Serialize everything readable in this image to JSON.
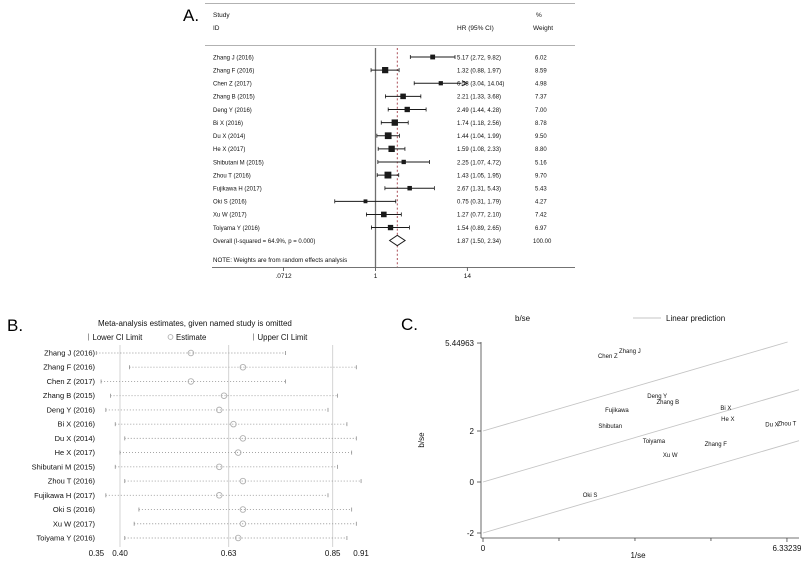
{
  "chart_data": [
    {
      "type": "forest",
      "panel_label": "A.",
      "columns": {
        "study": "Study",
        "id": "ID",
        "hr": "HR (95% CI)",
        "percent": "%",
        "weight": "Weight"
      },
      "note": "NOTE: Weights are from random effects analysis",
      "x_axis": {
        "scale": "log",
        "null_value": 1,
        "ticks": [
          {
            "label": ".0712",
            "value": 0.0712
          },
          {
            "label": "1",
            "value": 1
          },
          {
            "label": "14",
            "value": 14
          }
        ]
      },
      "studies": [
        {
          "id": "Zhang J (2016)",
          "hr": 5.17,
          "lo": 2.72,
          "hi": 9.82,
          "hr_text": "5.17 (2.72, 9.82)",
          "weight": 6.02,
          "weight_text": "6.02"
        },
        {
          "id": "Zhang F (2016)",
          "hr": 1.32,
          "lo": 0.88,
          "hi": 1.97,
          "hr_text": "1.32 (0.88, 1.97)",
          "weight": 8.59,
          "weight_text": "8.59"
        },
        {
          "id": "Chen Z (2017)",
          "hr": 6.53,
          "lo": 3.04,
          "hi": 14.04,
          "hr_text": "6.53 (3.04, 14.04)",
          "weight": 4.98,
          "weight_text": "4.98"
        },
        {
          "id": "Zhang B (2015)",
          "hr": 2.21,
          "lo": 1.33,
          "hi": 3.68,
          "hr_text": "2.21 (1.33, 3.68)",
          "weight": 7.37,
          "weight_text": "7.37"
        },
        {
          "id": "Deng Y (2016)",
          "hr": 2.49,
          "lo": 1.44,
          "hi": 4.28,
          "hr_text": "2.49 (1.44, 4.28)",
          "weight": 7.0,
          "weight_text": "7.00"
        },
        {
          "id": "Bi X (2016)",
          "hr": 1.74,
          "lo": 1.18,
          "hi": 2.56,
          "hr_text": "1.74 (1.18, 2.56)",
          "weight": 8.78,
          "weight_text": "8.78"
        },
        {
          "id": "Du X (2014)",
          "hr": 1.44,
          "lo": 1.04,
          "hi": 1.99,
          "hr_text": "1.44 (1.04, 1.99)",
          "weight": 9.5,
          "weight_text": "9.50"
        },
        {
          "id": "He X (2017)",
          "hr": 1.59,
          "lo": 1.08,
          "hi": 2.33,
          "hr_text": "1.59 (1.08, 2.33)",
          "weight": 8.8,
          "weight_text": "8.80"
        },
        {
          "id": "Shibutani M (2015)",
          "hr": 2.25,
          "lo": 1.07,
          "hi": 4.72,
          "hr_text": "2.25 (1.07, 4.72)",
          "weight": 5.16,
          "weight_text": "5.16"
        },
        {
          "id": "Zhou T (2016)",
          "hr": 1.43,
          "lo": 1.05,
          "hi": 1.95,
          "hr_text": "1.43 (1.05, 1.95)",
          "weight": 9.7,
          "weight_text": "9.70"
        },
        {
          "id": "Fujikawa H (2017)",
          "hr": 2.67,
          "lo": 1.31,
          "hi": 5.43,
          "hr_text": "2.67 (1.31, 5.43)",
          "weight": 5.43,
          "weight_text": "5.43"
        },
        {
          "id": "Oki S (2016)",
          "hr": 0.75,
          "lo": 0.31,
          "hi": 1.79,
          "hr_text": "0.75 (0.31, 1.79)",
          "weight": 4.27,
          "weight_text": "4.27"
        },
        {
          "id": "Xu W (2017)",
          "hr": 1.27,
          "lo": 0.77,
          "hi": 2.1,
          "hr_text": "1.27 (0.77, 2.10)",
          "weight": 7.42,
          "weight_text": "7.42"
        },
        {
          "id": "Toiyama Y (2016)",
          "hr": 1.54,
          "lo": 0.89,
          "hi": 2.65,
          "hr_text": "1.54 (0.89, 2.65)",
          "weight": 6.97,
          "weight_text": "6.97"
        }
      ],
      "overall": {
        "id": "Overall  (I-squared = 64.9%, p = 0.000)",
        "hr": 1.87,
        "lo": 1.5,
        "hi": 2.34,
        "hr_text": "1.87 (1.50, 2.34)",
        "weight_text": "100.00"
      },
      "colors": {
        "marker": "#1a1a1a",
        "null_line": "#6f6f6f",
        "overall_dashed_line": "#a23b45"
      }
    },
    {
      "type": "sensitivity",
      "panel_label": "B.",
      "title": "Meta-analysis estimates, given named study is omitted",
      "legend": {
        "lower": "Lower CI Limit",
        "estimate": "Estimate",
        "upper": "Upper CI Limit"
      },
      "x_ticks": [
        {
          "label": "0.35",
          "value": 0.35
        },
        {
          "label": "0.40",
          "value": 0.4
        },
        {
          "label": "0.63",
          "value": 0.63
        },
        {
          "label": "0.85",
          "value": 0.85
        },
        {
          "label": "0.91",
          "value": 0.91
        }
      ],
      "gridlines": [
        0.4,
        0.63,
        0.85
      ],
      "rows": [
        {
          "label": "Zhang J (2016)",
          "lower": 0.35,
          "estimate": 0.55,
          "upper": 0.75
        },
        {
          "label": "Zhang F (2016)",
          "lower": 0.42,
          "estimate": 0.66,
          "upper": 0.9
        },
        {
          "label": "Chen Z (2017)",
          "lower": 0.36,
          "estimate": 0.55,
          "upper": 0.75
        },
        {
          "label": "Zhang B (2015)",
          "lower": 0.38,
          "estimate": 0.62,
          "upper": 0.86
        },
        {
          "label": "Deng Y (2016)",
          "lower": 0.37,
          "estimate": 0.61,
          "upper": 0.84
        },
        {
          "label": "Bi X (2016)",
          "lower": 0.39,
          "estimate": 0.64,
          "upper": 0.88
        },
        {
          "label": "Du X (2014)",
          "lower": 0.41,
          "estimate": 0.66,
          "upper": 0.9
        },
        {
          "label": "He X (2017)",
          "lower": 0.4,
          "estimate": 0.65,
          "upper": 0.89
        },
        {
          "label": "Shibutani M (2015)",
          "lower": 0.39,
          "estimate": 0.61,
          "upper": 0.86
        },
        {
          "label": "Zhou T (2016)",
          "lower": 0.41,
          "estimate": 0.66,
          "upper": 0.91
        },
        {
          "label": "Fujikawa H (2017)",
          "lower": 0.37,
          "estimate": 0.61,
          "upper": 0.84
        },
        {
          "label": "Oki S (2016)",
          "lower": 0.44,
          "estimate": 0.66,
          "upper": 0.89
        },
        {
          "label": "Xu W (2017)",
          "lower": 0.43,
          "estimate": 0.66,
          "upper": 0.9
        },
        {
          "label": "Toiyama Y (2016)",
          "lower": 0.41,
          "estimate": 0.65,
          "upper": 0.88
        }
      ],
      "colors": {
        "line": "#9a9a9a",
        "gridline": "#c9c9c9"
      }
    },
    {
      "type": "galbraith",
      "panel_label": "C.",
      "title": "b/se",
      "legend_label": "Linear prediction",
      "xlabel": "1/se",
      "ylabel": "b/se",
      "x_ticks": [
        {
          "label": "0",
          "value": 0
        },
        {
          "label": "6.33239",
          "value": 6.33239
        }
      ],
      "x_minor_ticks": [
        1.583,
        3.166,
        4.749
      ],
      "y_ticks": [
        {
          "label": "5.44963",
          "value": 5.44963
        },
        {
          "label": "2",
          "value": 2
        },
        {
          "label": "0",
          "value": 0
        },
        {
          "label": "-2",
          "value": -2
        }
      ],
      "regression": {
        "slope": 0.55,
        "intercepts": [
          2,
          0,
          -2
        ]
      },
      "points": [
        {
          "label": "Chen Z",
          "x": 2.6,
          "y": 4.94
        },
        {
          "label": "Zhang J",
          "x": 3.06,
          "y": 5.14
        },
        {
          "label": "Deng Y",
          "x": 3.63,
          "y": 3.37
        },
        {
          "label": "Zhang B",
          "x": 3.85,
          "y": 3.14
        },
        {
          "label": "Fujikawa",
          "x": 2.79,
          "y": 2.82
        },
        {
          "label": "Shibutan",
          "x": 2.65,
          "y": 2.2
        },
        {
          "label": "Bi X",
          "x": 5.06,
          "y": 2.9
        },
        {
          "label": "He X",
          "x": 5.1,
          "y": 2.47
        },
        {
          "label": "Du X",
          "x": 6.02,
          "y": 2.25
        },
        {
          "label": "Zhou T",
          "x": 6.33,
          "y": 2.3
        },
        {
          "label": "Toiyama",
          "x": 3.56,
          "y": 1.61
        },
        {
          "label": "Zhang F",
          "x": 4.85,
          "y": 1.49
        },
        {
          "label": "Xu W",
          "x": 3.9,
          "y": 1.06
        },
        {
          "label": "Oki S",
          "x": 2.23,
          "y": -0.51
        }
      ],
      "colors": {
        "line": "#c4c4c4",
        "point_label": "#333333"
      }
    }
  ]
}
